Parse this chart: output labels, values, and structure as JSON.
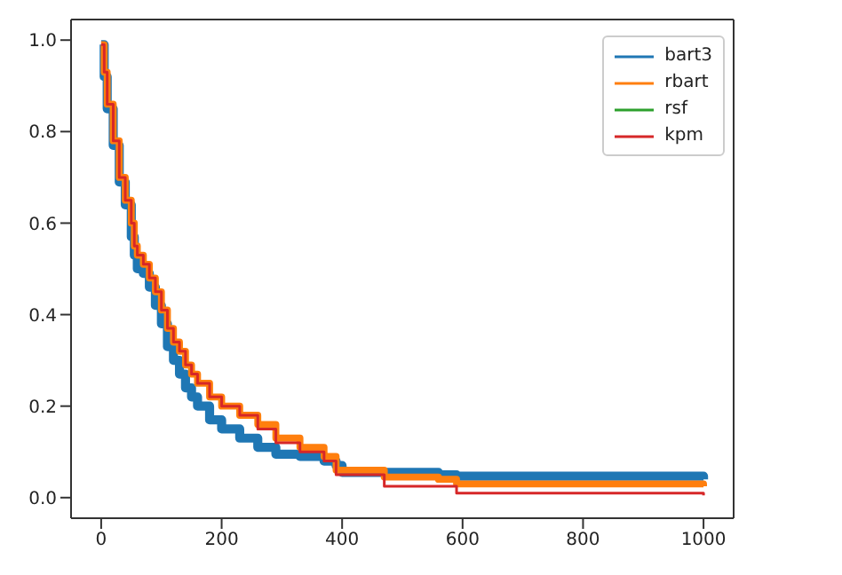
{
  "chart_data": {
    "type": "step",
    "x": [
      0,
      5,
      10,
      20,
      30,
      40,
      50,
      55,
      60,
      70,
      80,
      90,
      100,
      110,
      120,
      130,
      140,
      150,
      160,
      180,
      200,
      230,
      260,
      290,
      330,
      370,
      390,
      400,
      470,
      560,
      590,
      990,
      1000
    ],
    "series": [
      {
        "name": "bart3",
        "color": "#1f77b4",
        "values": [
          0.99,
          0.92,
          0.85,
          0.77,
          0.69,
          0.64,
          0.57,
          0.53,
          0.5,
          0.49,
          0.46,
          0.42,
          0.38,
          0.33,
          0.3,
          0.27,
          0.24,
          0.22,
          0.2,
          0.17,
          0.15,
          0.13,
          0.11,
          0.095,
          0.09,
          0.08,
          0.07,
          0.055,
          0.055,
          0.05,
          0.047,
          0.047,
          0.04
        ]
      },
      {
        "name": "rbart",
        "color": "#ff7f0e",
        "values": [
          0.99,
          0.93,
          0.86,
          0.78,
          0.7,
          0.65,
          0.6,
          0.55,
          0.53,
          0.51,
          0.48,
          0.45,
          0.41,
          0.37,
          0.34,
          0.32,
          0.29,
          0.27,
          0.25,
          0.22,
          0.2,
          0.18,
          0.16,
          0.13,
          0.11,
          0.09,
          0.06,
          0.06,
          0.045,
          0.04,
          0.03,
          0.03,
          0.025
        ]
      },
      {
        "name": "rsf",
        "color": "#2ca02c",
        "values": [
          null,
          null,
          null,
          null,
          null,
          null,
          null,
          null,
          null,
          null,
          null,
          null,
          null,
          null,
          null,
          null,
          null,
          null,
          null,
          null,
          null,
          null,
          null,
          null,
          null,
          null,
          null,
          null,
          null,
          null,
          null,
          null,
          null
        ]
      },
      {
        "name": "kpm",
        "color": "#d62728",
        "values": [
          0.99,
          0.93,
          0.86,
          0.78,
          0.7,
          0.65,
          0.6,
          0.55,
          0.53,
          0.51,
          0.48,
          0.45,
          0.41,
          0.37,
          0.34,
          0.32,
          0.29,
          0.27,
          0.25,
          0.22,
          0.2,
          0.18,
          0.15,
          0.12,
          0.1,
          0.08,
          0.05,
          0.05,
          0.025,
          0.025,
          0.01,
          0.01,
          0.005
        ]
      }
    ],
    "xlim": [
      -50,
      1050
    ],
    "xticks": [
      0,
      200,
      400,
      600,
      800,
      1000
    ],
    "ylim": [
      -0.045,
      1.045
    ],
    "yticks": [
      {
        "value": 0,
        "label": "0.0"
      },
      {
        "value": 0.2,
        "label": "0.2"
      },
      {
        "value": 0.4,
        "label": "0.4"
      },
      {
        "value": 0.6,
        "label": "0.6"
      },
      {
        "value": 0.8,
        "label": "0.8"
      },
      {
        "value": 1,
        "label": "1.0"
      }
    ],
    "legend": "top right",
    "grid": false,
    "marker": "none",
    "line_style": "solid"
  }
}
